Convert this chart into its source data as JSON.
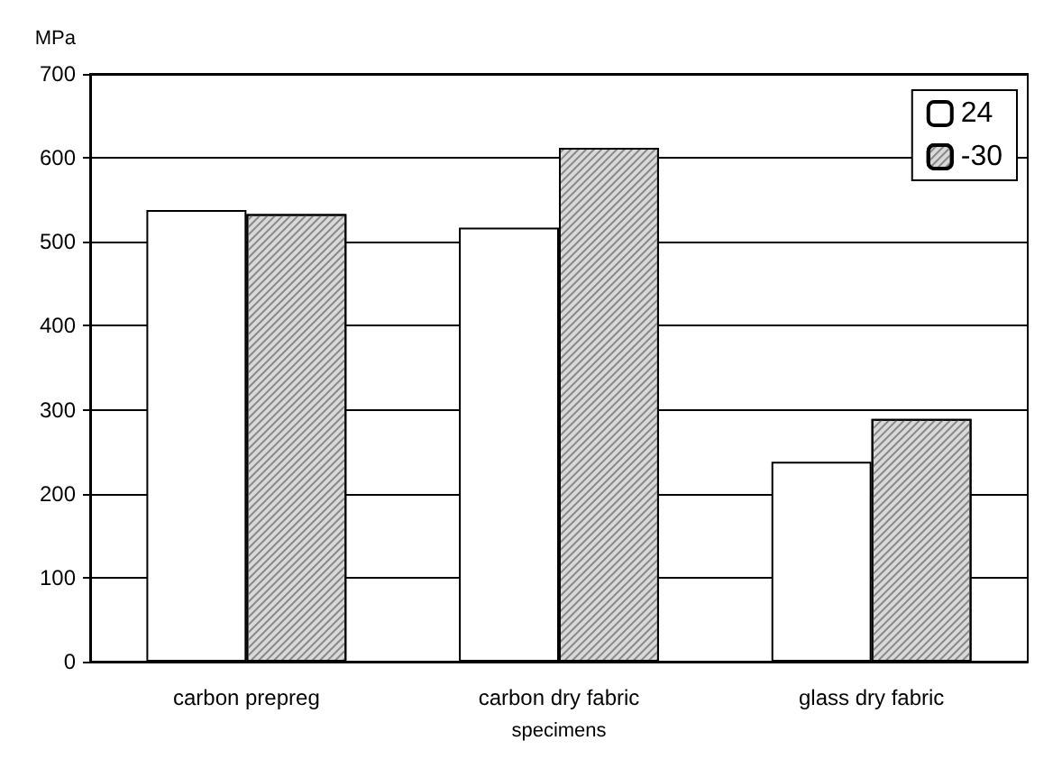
{
  "chart_data": {
    "type": "bar",
    "ylabel": "MPa",
    "xlabel": "specimens",
    "categories": [
      "carbon prepreg",
      "carbon dry fabric",
      "glass dry fabric"
    ],
    "series": [
      {
        "name": "24",
        "color": "#ffffff",
        "values": [
          538,
          517,
          238
        ]
      },
      {
        "name": "-30",
        "color": "#d9d9d9",
        "values": [
          533,
          612,
          289
        ]
      }
    ],
    "ylim": [
      0,
      700
    ],
    "yticks": [
      0,
      100,
      200,
      300,
      400,
      500,
      600,
      700
    ],
    "grid": "y",
    "legend": "top right"
  }
}
